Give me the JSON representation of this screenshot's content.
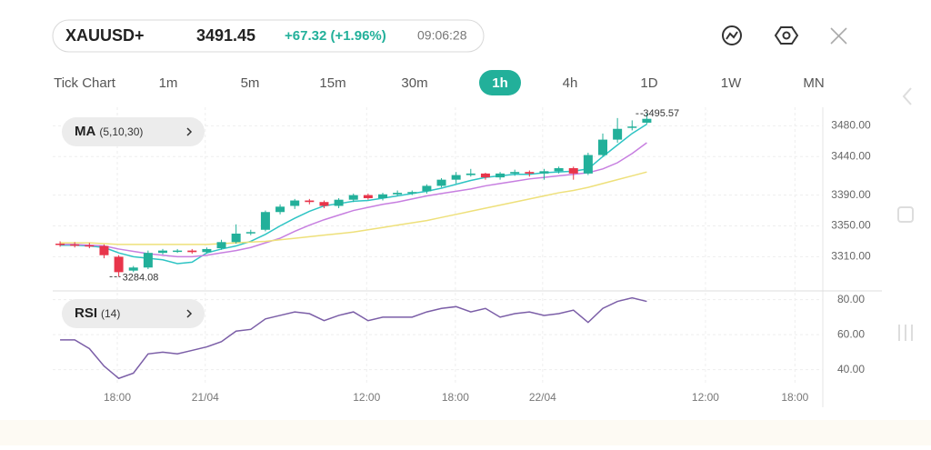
{
  "header": {
    "symbol": "XAUUSD+",
    "price": "3491.45",
    "change": "+67.32 (+1.96%)",
    "time": "09:06:28"
  },
  "timeframes": {
    "items": [
      "Tick Chart",
      "1m",
      "5m",
      "15m",
      "30m",
      "1h",
      "4h",
      "1D",
      "1W",
      "MN"
    ],
    "active": 5
  },
  "chart": {
    "xlim": [
      -0.5,
      52
    ],
    "xticks": [
      {
        "value": 3.9,
        "label": "18:00"
      },
      {
        "value": 9.9,
        "label": "21/04"
      },
      {
        "value": 20.9,
        "label": "12:00"
      },
      {
        "value": 26.95,
        "label": "18:00"
      },
      {
        "value": 32.9,
        "label": "22/04"
      },
      {
        "value": 44,
        "label": "12:00"
      },
      {
        "value": 50.1,
        "label": "18:00"
      }
    ],
    "price_panel": {
      "indicator": "MA",
      "params": "(5,10,30)",
      "ylim": [
        3268,
        3504
      ],
      "yticks": [
        {
          "value": 3310,
          "label": "3310.00"
        },
        {
          "value": 3350,
          "label": "3350.00"
        },
        {
          "value": 3390,
          "label": "3390.00"
        },
        {
          "value": 3440,
          "label": "3440.00"
        },
        {
          "value": 3480,
          "label": "3480.00"
        }
      ],
      "up_color": "#22b09a",
      "down_color": "#e8354b",
      "candles": {
        "open": [
          3327,
          3326,
          3325,
          3324,
          3310,
          3292,
          3296,
          3315,
          3317,
          3318,
          3316,
          3321,
          3329,
          3341,
          3345,
          3368,
          3376,
          3383,
          3381,
          3376,
          3384,
          3390,
          3386,
          3391,
          3393,
          3395,
          3402,
          3410,
          3416,
          3418,
          3413,
          3418,
          3420,
          3418,
          3421,
          3425,
          3418,
          3442,
          3462,
          3478,
          3484
        ],
        "high": [
          3330,
          3329,
          3328,
          3326,
          3312,
          3298,
          3318,
          3320,
          3320,
          3320,
          3322,
          3332,
          3352,
          3345,
          3370,
          3378,
          3385,
          3385,
          3383,
          3386,
          3392,
          3392,
          3393,
          3396,
          3396,
          3404,
          3412,
          3420,
          3424,
          3419,
          3420,
          3423,
          3422,
          3424,
          3427,
          3427,
          3445,
          3470,
          3490,
          3487,
          3495.57
        ],
        "low": [
          3323,
          3322,
          3321,
          3308,
          3284.08,
          3290,
          3294,
          3313,
          3315,
          3314,
          3314,
          3319,
          3327,
          3338,
          3343,
          3365,
          3372,
          3378,
          3373,
          3373,
          3381,
          3384,
          3383,
          3389,
          3390,
          3392,
          3400,
          3405,
          3414,
          3410,
          3410,
          3415,
          3414,
          3410,
          3418,
          3410,
          3416,
          3440,
          3458,
          3474,
          3482
        ],
        "close": [
          3326,
          3325,
          3324,
          3312,
          3290,
          3296,
          3315,
          3318,
          3318,
          3316,
          3320,
          3329,
          3340,
          3342,
          3368,
          3375,
          3383,
          3381,
          3376,
          3384,
          3390,
          3386,
          3391,
          3393,
          3394,
          3402,
          3410,
          3416,
          3418,
          3413,
          3418,
          3420,
          3418,
          3421,
          3425,
          3418,
          3442,
          3462,
          3476,
          3479,
          3489
        ]
      },
      "ma": [
        {
          "color": "#2ec4c4",
          "values": [
            3325,
            3325,
            3324,
            3322,
            3315,
            3310,
            3308,
            3306,
            3301,
            3303,
            3315,
            3320,
            3324,
            3330,
            3339,
            3350,
            3360,
            3369,
            3376,
            3379,
            3382,
            3383,
            3386,
            3389,
            3392,
            3395,
            3399,
            3404,
            3409,
            3413,
            3415,
            3417,
            3417,
            3419,
            3420,
            3421,
            3424,
            3440,
            3455,
            3470,
            3482
          ]
        },
        {
          "color": "#c77fe0",
          "values": [
            3326,
            3326,
            3325,
            3324,
            3320,
            3317,
            3314,
            3312,
            3310,
            3310,
            3312,
            3315,
            3318,
            3322,
            3328,
            3334,
            3343,
            3351,
            3358,
            3364,
            3370,
            3374,
            3378,
            3381,
            3385,
            3389,
            3392,
            3395,
            3398,
            3402,
            3405,
            3408,
            3411,
            3413,
            3415,
            3417,
            3419,
            3424,
            3432,
            3444,
            3458
          ]
        },
        {
          "color": "#eee07a",
          "values": [
            3328,
            3328,
            3328,
            3327,
            3326,
            3326,
            3326,
            3326,
            3326,
            3326,
            3326,
            3327,
            3328,
            3329,
            3330,
            3332,
            3334,
            3336,
            3338,
            3340,
            3342,
            3345,
            3348,
            3351,
            3354,
            3357,
            3361,
            3365,
            3369,
            3373,
            3377,
            3381,
            3385,
            3389,
            3393,
            3396,
            3400,
            3405,
            3410,
            3415,
            3420
          ]
        }
      ]
    },
    "rsi_panel": {
      "indicator": "RSI",
      "params": "(14)",
      "ylim": [
        32,
        85
      ],
      "yticks": [
        {
          "value": 40,
          "label": "40.00"
        },
        {
          "value": 60,
          "label": "60.00"
        },
        {
          "value": 80,
          "label": "80.00"
        }
      ],
      "color": "#7b5ea7",
      "values": [
        57,
        57,
        52,
        42,
        35,
        38,
        49,
        50,
        49,
        51,
        53,
        56,
        62,
        63,
        69,
        71,
        73,
        72,
        68,
        71,
        73,
        68,
        70,
        70,
        70,
        73,
        75,
        76,
        73,
        75,
        70,
        72,
        73,
        71,
        72,
        74,
        67,
        75,
        79,
        81,
        79
      ]
    }
  }
}
